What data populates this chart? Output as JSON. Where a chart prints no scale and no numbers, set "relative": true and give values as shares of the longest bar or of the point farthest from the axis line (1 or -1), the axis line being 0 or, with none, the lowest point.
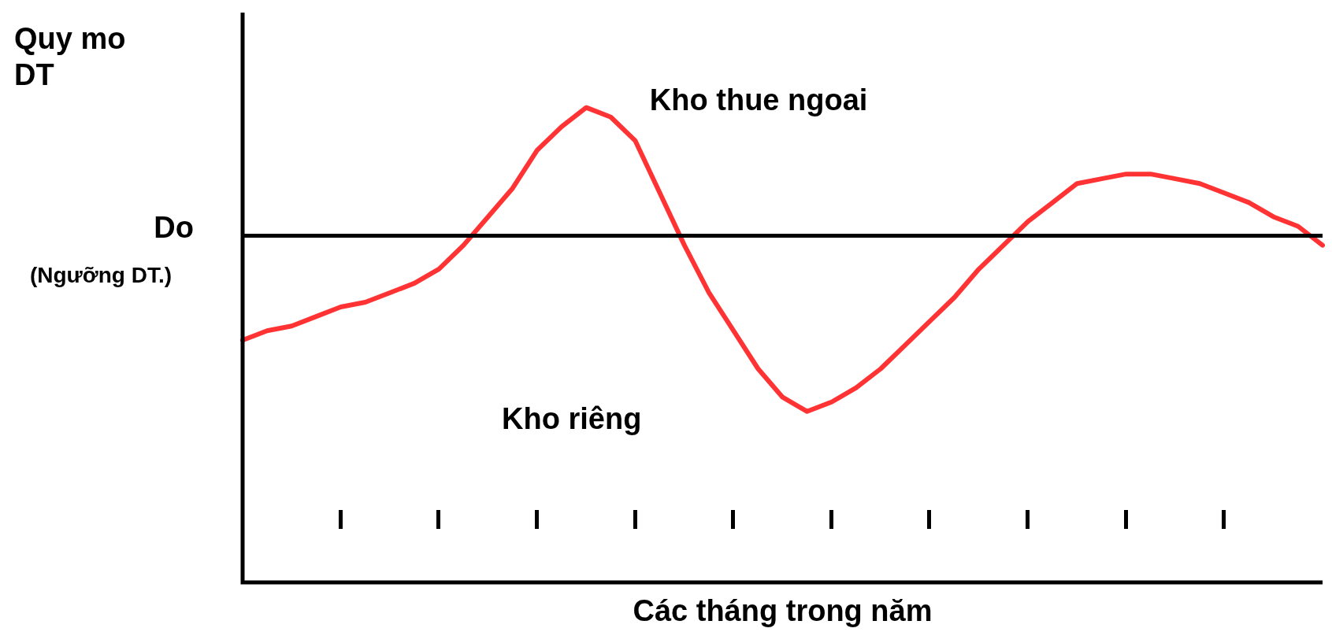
{
  "chart_data": {
    "type": "line",
    "relative": true,
    "ylabel": "Quy mo DT",
    "xlabel": "Các tháng trong năm",
    "categories": [
      null,
      null,
      null,
      null,
      null,
      null,
      null,
      null,
      null,
      null,
      null,
      null,
      null,
      null,
      null,
      null,
      null,
      null,
      null,
      null,
      null,
      null,
      null,
      null,
      null,
      null,
      null,
      null,
      null,
      null,
      null,
      null,
      null,
      null,
      null,
      null,
      null,
      null,
      null,
      null,
      null,
      null,
      null,
      null,
      null
    ],
    "grid": false,
    "legend": false,
    "marker": "none",
    "line_style": "solid",
    "series": [
      {
        "color": "#ff3333",
        "values": [
          0.51,
          0.53,
          0.54,
          0.56,
          0.58,
          0.59,
          0.61,
          0.63,
          0.66,
          0.71,
          0.77,
          0.83,
          0.91,
          0.96,
          1,
          0.98,
          0.93,
          0.82,
          0.71,
          0.61,
          0.53,
          0.45,
          0.39,
          0.36,
          0.38,
          0.41,
          0.45,
          0.5,
          0.55,
          0.6,
          0.66,
          0.71,
          0.76,
          0.8,
          0.84,
          0.85,
          0.86,
          0.86,
          0.85,
          0.84,
          0.82,
          0.8,
          0.77,
          0.75,
          0.71
        ]
      }
    ],
    "ref_lines": [
      {
        "axis": "y",
        "value": 0.73,
        "label": "Do (Ngưỡng DT.)",
        "color": "#000000"
      }
    ],
    "annotations": [
      "Kho thue ngoai",
      "Kho riêng"
    ]
  }
}
